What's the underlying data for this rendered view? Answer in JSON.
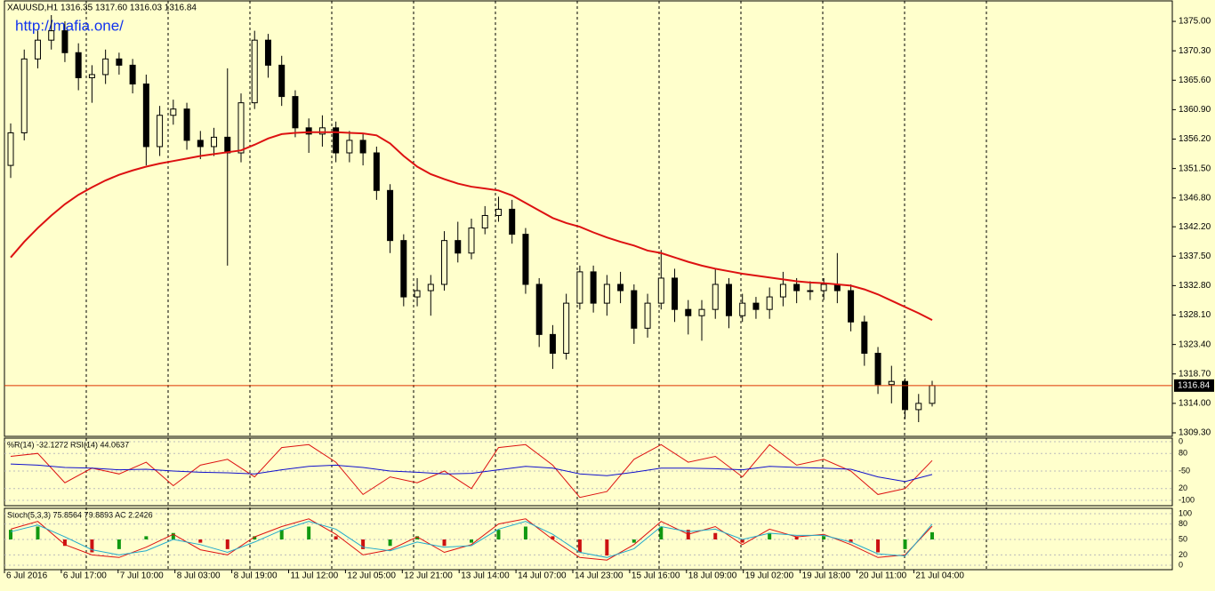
{
  "chart_data": {
    "type": "candlestick",
    "header": "XAUUSD,H1  1316.35 1317.60 1316.03 1316.84",
    "watermark": "http://mafia.one/",
    "ylim": [
      1308.73,
      1378.27
    ],
    "yticks": [
      {
        "value": 1375.0,
        "label": "1375.00"
      },
      {
        "value": 1370.3,
        "label": "1370.30"
      },
      {
        "value": 1365.6,
        "label": "1365.60"
      },
      {
        "value": 1360.9,
        "label": "1360.90"
      },
      {
        "value": 1356.2,
        "label": "1356.20"
      },
      {
        "value": 1351.5,
        "label": "1351.50"
      },
      {
        "value": 1346.8,
        "label": "1346.80"
      },
      {
        "value": 1342.2,
        "label": "1342.20"
      },
      {
        "value": 1337.5,
        "label": "1337.50"
      },
      {
        "value": 1332.8,
        "label": "1332.80"
      },
      {
        "value": 1328.1,
        "label": "1328.10"
      },
      {
        "value": 1323.4,
        "label": "1323.40"
      },
      {
        "value": 1318.7,
        "label": "1318.70"
      },
      {
        "value": 1314.0,
        "label": "1314.00"
      },
      {
        "value": 1309.3,
        "label": "1309.30"
      }
    ],
    "x_labels": [
      "6 Jul 2016",
      "6 Jul 17:00",
      "7 Jul 10:00",
      "8 Jul 03:00",
      "8 Jul 19:00",
      "11 Jul 12:00",
      "12 Jul 05:00",
      "12 Jul 21:00",
      "13 Jul 14:00",
      "14 Jul 07:00",
      "14 Jul 23:00",
      "15 Jul 16:00",
      "18 Jul 09:00",
      "19 Jul 02:00",
      "19 Jul 18:00",
      "20 Jul 11:00",
      "21 Jul 04:00"
    ],
    "candles": {
      "open": [
        1352,
        1357.2,
        1369,
        1372,
        1373.5,
        1370,
        1366,
        1366.5,
        1369,
        1368,
        1365,
        1355,
        1360,
        1361,
        1356,
        1355,
        1356.5,
        1354,
        1362,
        1372,
        1368,
        1363,
        1358,
        1357,
        1358,
        1354,
        1356,
        1354,
        1348,
        1340,
        1331,
        1332,
        1333,
        1340,
        1338,
        1342,
        1344,
        1345,
        1341,
        1333,
        1325,
        1322,
        1330,
        1335,
        1330,
        1333,
        1332,
        1326,
        1330,
        1334,
        1329,
        1328,
        1329,
        1333,
        1328,
        1330,
        1329,
        1331,
        1333,
        1332,
        1332,
        1333,
        1332,
        1327,
        1322,
        1317,
        1317.5,
        1313,
        1314
      ],
      "high": [
        1358.7,
        1370.5,
        1373.5,
        1376,
        1375,
        1371.5,
        1368,
        1370.5,
        1370,
        1369,
        1366.5,
        1361.5,
        1362.5,
        1362,
        1357.5,
        1358,
        1367.5,
        1363.5,
        1373.5,
        1373,
        1369.5,
        1364,
        1359.5,
        1360,
        1359,
        1357.5,
        1357,
        1355,
        1349,
        1341,
        1334,
        1334.5,
        1341.5,
        1343,
        1343.5,
        1345.5,
        1347,
        1346.5,
        1342,
        1334,
        1326.5,
        1331.5,
        1336,
        1336,
        1334.5,
        1335,
        1333,
        1331.5,
        1338.5,
        1335.5,
        1330.5,
        1330.5,
        1335.5,
        1334,
        1331.5,
        1331,
        1332.5,
        1335,
        1334,
        1333.5,
        1334,
        1338,
        1333,
        1328,
        1323,
        1320,
        1318,
        1315.5,
        1317.6
      ],
      "low": [
        1350,
        1356,
        1367.5,
        1370.5,
        1368.5,
        1364,
        1362,
        1365,
        1366.5,
        1363.5,
        1352,
        1353.5,
        1358.5,
        1354.5,
        1353,
        1353.5,
        1336,
        1352.5,
        1361,
        1366,
        1361.5,
        1356.5,
        1354,
        1355,
        1352.5,
        1352.5,
        1352,
        1346.5,
        1338,
        1329.5,
        1329.5,
        1328,
        1332,
        1336.5,
        1337,
        1341,
        1343,
        1339.5,
        1331.5,
        1323,
        1319.5,
        1321,
        1329,
        1328.5,
        1328,
        1330,
        1323.5,
        1324.5,
        1329,
        1327,
        1325,
        1324,
        1327.5,
        1326,
        1327,
        1327.5,
        1327.5,
        1329.5,
        1330,
        1330.5,
        1330.5,
        1330,
        1325.5,
        1320,
        1315.5,
        1314,
        1311.5,
        1311,
        1313.5
      ],
      "close": [
        1357.2,
        1369,
        1372,
        1373.5,
        1370,
        1366,
        1366.5,
        1369,
        1368,
        1365,
        1355,
        1360,
        1361,
        1356,
        1355,
        1356.5,
        1354,
        1362,
        1372,
        1368,
        1363,
        1358,
        1357,
        1358,
        1354,
        1356,
        1354,
        1348,
        1340,
        1331,
        1332,
        1333,
        1340,
        1338,
        1342,
        1344,
        1345,
        1341,
        1333,
        1325,
        1322,
        1330,
        1335,
        1330,
        1333,
        1332,
        1326,
        1330,
        1334,
        1329,
        1328,
        1329,
        1333,
        1328,
        1330,
        1329,
        1331,
        1333,
        1332,
        1332,
        1333,
        1332,
        1327,
        1322,
        1317,
        1317.5,
        1313,
        1314,
        1316.84
      ]
    },
    "ma": {
      "color": "#dd1111",
      "values": [
        1337.3,
        1339.8,
        1342,
        1344,
        1345.8,
        1347.3,
        1348.5,
        1349.6,
        1350.5,
        1351.2,
        1351.8,
        1352.3,
        1352.7,
        1353.1,
        1353.5,
        1353.8,
        1354.1,
        1354.4,
        1355.3,
        1356.3,
        1357,
        1357.2,
        1357.3,
        1357.3,
        1357.3,
        1357.2,
        1357.1,
        1356.8,
        1355.5,
        1353.5,
        1351.8,
        1350.6,
        1349.8,
        1349.1,
        1348.6,
        1348.3,
        1348,
        1347.2,
        1346,
        1344.8,
        1343.6,
        1342.8,
        1342.2,
        1341.3,
        1340.5,
        1339.8,
        1339.2,
        1338.4,
        1338,
        1337.3,
        1336.6,
        1336,
        1335.5,
        1335.1,
        1334.7,
        1334.4,
        1334.1,
        1333.8,
        1333.5,
        1333.3,
        1333.2,
        1333,
        1332.8,
        1332.2,
        1331.4,
        1330.4,
        1329.4,
        1328.4,
        1327.3
      ]
    },
    "last_price": {
      "value": 1316.84,
      "color": "#dd3300"
    },
    "panels": [
      {
        "type": "line",
        "label": "%R(14) -32.1272 RSI(14) 44.0637",
        "ylim": [
          -100,
          0
        ],
        "yticks": [
          0,
          -50,
          -100
        ],
        "y2lim": [
          0,
          100
        ],
        "y2ticks": [
          80,
          20
        ],
        "series": [
          {
            "color": "#dd1111",
            "values": [
              -25,
              -20,
              -70,
              -45,
              -55,
              -35,
              -75,
              -40,
              -30,
              -60,
              -10,
              -5,
              -35,
              -90,
              -60,
              -70,
              -50,
              -80,
              -10,
              -5,
              -40,
              -95,
              -85,
              -30,
              -5,
              -35,
              -25,
              -60,
              -5,
              -40,
              -30,
              -50,
              -90,
              -80,
              -32.1272
            ]
          },
          {
            "color": "#1111cc",
            "axis": "y2",
            "values": [
              62,
              60,
              56,
              55,
              52,
              53,
              50,
              48,
              47,
              45,
              52,
              58,
              60,
              56,
              50,
              48,
              45,
              46,
              52,
              58,
              55,
              45,
              42,
              48,
              55,
              55,
              54,
              52,
              58,
              56,
              55,
              53,
              40,
              32,
              44.0637
            ]
          }
        ]
      },
      {
        "type": "line",
        "label": "Stoch(5,3,3) 75.8564 79.8893  AC 2.2426",
        "ylim": [
          0,
          100
        ],
        "yticks": [
          100,
          80,
          50,
          20,
          0
        ],
        "y2lim": [
          -8,
          8
        ],
        "series": [
          {
            "type": "bar",
            "axis": "y2",
            "up_color": "#119911",
            "down_color": "#cc1111",
            "values": [
              3,
              4,
              -2,
              -4,
              -3,
              1,
              2,
              -1,
              -3,
              1,
              3,
              4,
              1,
              -3,
              -2,
              1,
              -2,
              -1,
              3,
              4,
              1,
              -4,
              -5,
              -1,
              4,
              3,
              2,
              -1,
              2,
              1,
              1,
              -1,
              -4,
              -3,
              2.2426
            ]
          },
          {
            "color": "#dd1111",
            "values": [
              70,
              85,
              40,
              20,
              15,
              35,
              60,
              30,
              20,
              55,
              75,
              90,
              60,
              20,
              30,
              55,
              25,
              40,
              80,
              90,
              50,
              15,
              10,
              40,
              85,
              60,
              75,
              40,
              70,
              55,
              60,
              40,
              15,
              20,
              75.8564
            ]
          },
          {
            "color": "#22aacc",
            "values": [
              65,
              78,
              55,
              30,
              20,
              28,
              50,
              40,
              25,
              45,
              68,
              85,
              70,
              35,
              28,
              45,
              35,
              38,
              70,
              85,
              60,
              25,
              15,
              32,
              75,
              65,
              70,
              50,
              62,
              58,
              58,
              45,
              22,
              18,
              79.8893
            ]
          }
        ]
      }
    ]
  }
}
